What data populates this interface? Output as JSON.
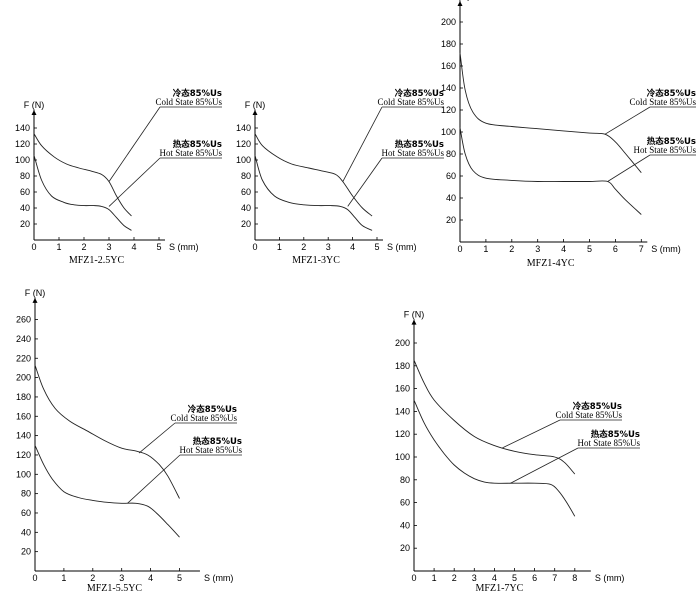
{
  "chart_data": [
    {
      "type": "line",
      "title": "MFZ1-2.5YC",
      "ylabel": "F (N)",
      "xlabel": "S (mm)",
      "ylim": [
        0,
        150
      ],
      "xlim": [
        0,
        5
      ],
      "yticks": [
        20,
        40,
        60,
        80,
        100,
        120,
        140
      ],
      "xticks": [
        0,
        1,
        2,
        3,
        4,
        5
      ],
      "series": [
        {
          "name": "冷态85%Us Cold State 85%Us",
          "label_cn": "冷态85%Us",
          "label_en": "Cold State 85%Us",
          "x": [
            0,
            0.3,
            0.8,
            1.3,
            1.8,
            2.3,
            2.7,
            3.0,
            3.3,
            3.6,
            3.9
          ],
          "y": [
            133,
            118,
            104,
            95,
            90,
            86,
            82,
            73,
            55,
            40,
            30
          ]
        },
        {
          "name": "热态85%Us Hot State 85%Us",
          "label_cn": "热态85%Us",
          "label_en": "Hot State 85%Us",
          "x": [
            0,
            0.3,
            0.7,
            1.2,
            1.6,
            2.0,
            2.4,
            2.7,
            3.0,
            3.3,
            3.6,
            3.9
          ],
          "y": [
            106,
            75,
            55,
            47,
            44,
            43,
            43,
            42,
            38,
            28,
            18,
            12
          ]
        }
      ]
    },
    {
      "type": "line",
      "title": "MFZ1-3YC",
      "ylabel": "F (N)",
      "xlabel": "S (mm)",
      "ylim": [
        0,
        150
      ],
      "xlim": [
        0,
        5
      ],
      "yticks": [
        20,
        40,
        60,
        80,
        100,
        120,
        140
      ],
      "xticks": [
        0,
        1,
        2,
        3,
        4,
        5
      ],
      "series": [
        {
          "name": "冷态85%Us Cold State 85%Us",
          "label_cn": "冷态85%Us",
          "label_en": "Cold State 85%Us",
          "x": [
            0,
            0.3,
            0.9,
            1.5,
            2.2,
            2.8,
            3.3,
            3.6,
            4.0,
            4.4,
            4.8
          ],
          "y": [
            133,
            118,
            104,
            95,
            90,
            86,
            82,
            73,
            55,
            40,
            30
          ]
        },
        {
          "name": "热态85%Us Hot State 85%Us",
          "label_cn": "热态85%Us",
          "label_en": "Hot State 85%Us",
          "x": [
            0,
            0.3,
            0.8,
            1.4,
            2.0,
            2.6,
            3.1,
            3.5,
            3.8,
            4.1,
            4.4,
            4.8
          ],
          "y": [
            106,
            75,
            55,
            47,
            44,
            43,
            43,
            42,
            38,
            28,
            18,
            12
          ]
        }
      ]
    },
    {
      "type": "line",
      "title": "MFZ1-4YC",
      "ylabel": "F (N)",
      "xlabel": "S (mm)",
      "ylim": [
        0,
        210
      ],
      "xlim": [
        0,
        7
      ],
      "yticks": [
        20,
        40,
        60,
        80,
        100,
        120,
        140,
        160,
        180,
        200
      ],
      "xticks": [
        0,
        1,
        2,
        3,
        4,
        5,
        6,
        7
      ],
      "series": [
        {
          "name": "冷态85%Us Cold State 85%Us",
          "label_cn": "冷态85%Us",
          "label_en": "Cold State 85%Us",
          "x": [
            0,
            0.2,
            0.5,
            1.0,
            2.0,
            3.0,
            4.0,
            5.0,
            5.6,
            6.0,
            6.4,
            7.0
          ],
          "y": [
            172,
            138,
            118,
            108,
            105,
            103,
            101,
            99,
            98,
            91,
            80,
            63
          ]
        },
        {
          "name": "热态85%Us Hot State 85%Us",
          "label_cn": "热态85%Us",
          "label_en": "Hot State 85%Us",
          "x": [
            0,
            0.2,
            0.5,
            1.0,
            2.0,
            3.0,
            4.0,
            5.0,
            5.7,
            6.0,
            6.4,
            7.0
          ],
          "y": [
            104,
            80,
            65,
            58,
            56,
            55,
            55,
            55,
            55,
            48,
            38,
            25
          ]
        }
      ]
    },
    {
      "type": "line",
      "title": "MFZ1-5.5YC",
      "ylabel": "F (N)",
      "xlabel": "S (mm)",
      "ylim": [
        0,
        270
      ],
      "xlim": [
        0,
        5.5
      ],
      "yticks": [
        20,
        40,
        60,
        80,
        100,
        120,
        140,
        160,
        180,
        200,
        220,
        240,
        260
      ],
      "xticks": [
        0,
        1,
        2,
        3,
        4,
        5
      ],
      "series": [
        {
          "name": "冷态85%Us Cold State 85%Us",
          "label_cn": "冷态85%Us",
          "label_en": "Cold State 85%Us",
          "x": [
            0,
            0.3,
            0.7,
            1.2,
            1.8,
            2.4,
            3.0,
            3.5,
            3.9,
            4.3,
            4.6,
            5.0
          ],
          "y": [
            213,
            188,
            168,
            155,
            145,
            135,
            127,
            124,
            120,
            110,
            98,
            75
          ]
        },
        {
          "name": "热态85%Us Hot State 85%Us",
          "label_cn": "热态85%Us",
          "label_en": "Hot State 85%Us",
          "x": [
            0,
            0.3,
            0.6,
            1.0,
            1.5,
            2.0,
            2.5,
            3.0,
            3.5,
            3.9,
            4.2,
            4.6,
            5.0
          ],
          "y": [
            130,
            110,
            95,
            82,
            76,
            73,
            71,
            70,
            70,
            67,
            60,
            48,
            35
          ]
        }
      ]
    },
    {
      "type": "line",
      "title": "MFZ1-7YC",
      "ylabel": "F (N)",
      "xlabel": "S (mm)",
      "ylim": [
        0,
        210
      ],
      "xlim": [
        0,
        8.5
      ],
      "yticks": [
        20,
        40,
        60,
        80,
        100,
        120,
        140,
        160,
        180,
        200
      ],
      "xticks": [
        0,
        1,
        2,
        3,
        4,
        5,
        6,
        7,
        8
      ],
      "series": [
        {
          "name": "冷态85%Us Cold State 85%Us",
          "label_cn": "冷态85%Us",
          "label_en": "Cold State 85%Us",
          "x": [
            0,
            0.5,
            1.0,
            2.0,
            3.0,
            4.0,
            5.0,
            6.0,
            7.0,
            7.5,
            8.0
          ],
          "y": [
            185,
            165,
            150,
            132,
            118,
            110,
            105,
            102,
            100,
            95,
            85
          ]
        },
        {
          "name": "热态85%Us Hot State 85%Us",
          "label_cn": "热态85%Us",
          "label_en": "Hot State 85%Us",
          "x": [
            0,
            0.5,
            1.0,
            1.5,
            2.0,
            2.5,
            3.0,
            3.5,
            4.0,
            5.0,
            6.0,
            6.8,
            7.2,
            7.6,
            8.0
          ],
          "y": [
            150,
            130,
            115,
            103,
            93,
            86,
            81,
            78,
            77,
            77,
            77,
            76,
            70,
            60,
            48
          ]
        }
      ]
    }
  ]
}
